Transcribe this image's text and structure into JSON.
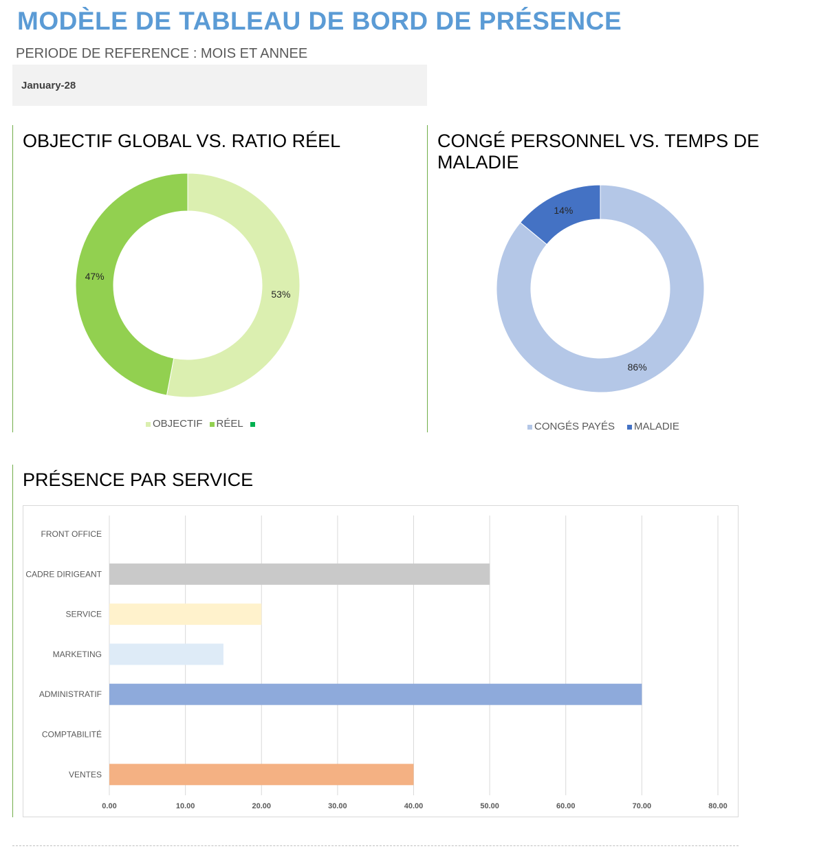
{
  "header": {
    "title": "MODÈLE DE TABLEAU DE BORD DE PRÉSENCE",
    "period_label": "PERIODE DE REFERENCE : MOIS ET ANNEE",
    "period_value": "January-28"
  },
  "chart_data": [
    {
      "type": "pie",
      "title": "OBJECTIF GLOBAL VS. RATIO RÉEL",
      "donut": true,
      "series": [
        {
          "name": "OBJECTIF",
          "value": 53,
          "label": "53%",
          "color": "#dbefb0"
        },
        {
          "name": "RÉEL",
          "value": 47,
          "label": "47%",
          "color": "#92d050"
        }
      ],
      "legend": [
        "OBJECTIF",
        "RÉEL",
        ""
      ],
      "legend_colors": [
        "#dbefb0",
        "#92d050",
        "#00b050"
      ],
      "legend_position": "bottom"
    },
    {
      "type": "pie",
      "title": "CONGÉ PERSONNEL VS. TEMPS DE MALADIE",
      "donut": true,
      "series": [
        {
          "name": "CONGÉS PAYÉS",
          "value": 86,
          "label": "86%",
          "color": "#b4c7e7"
        },
        {
          "name": "MALADIE",
          "value": 14,
          "label": "14%",
          "color": "#4472c4"
        }
      ],
      "legend_position": "bottom"
    },
    {
      "type": "bar",
      "orientation": "horizontal",
      "title": "PRÉSENCE PAR SERVICE",
      "categories": [
        "FRONT OFFICE",
        "CADRE DIRIGEANT",
        "SERVICE",
        "MARKETING",
        "ADMINISTRATIF",
        "COMPTABILITÉ",
        "VENTES"
      ],
      "values": [
        0,
        50,
        20,
        15,
        70,
        0,
        40
      ],
      "colors": [
        "#a9d18e",
        "#c9c9c9",
        "#fff2cc",
        "#deebf7",
        "#8eaadb",
        "#a9d18e",
        "#f4b183"
      ],
      "xlim": [
        0,
        80
      ],
      "xticks": [
        "0.00",
        "10.00",
        "20.00",
        "30.00",
        "40.00",
        "50.00",
        "60.00",
        "70.00",
        "80.00"
      ],
      "grid": true
    }
  ]
}
